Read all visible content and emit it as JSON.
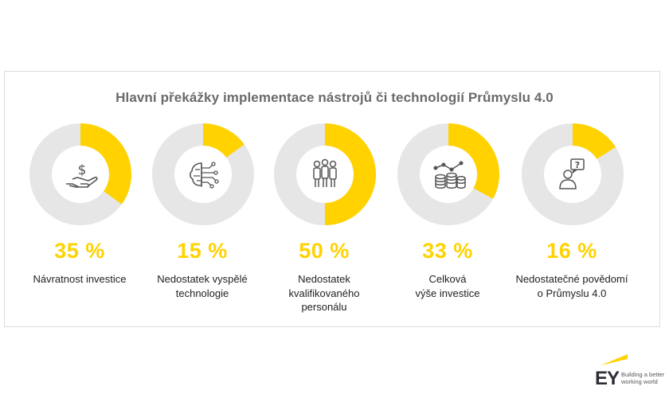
{
  "title": "Hlavní překážky implementace nástrojů či technologií Průmyslu 4.0",
  "colors": {
    "accent": "#ffd200",
    "track": "#e6e6e6",
    "text": "#222222",
    "title": "#6a6a6a"
  },
  "chart_data": {
    "type": "donut",
    "title": "Hlavní překážky implementace nástrojů či technologií Průmyslu 4.0",
    "unit": "%",
    "items": [
      {
        "value": 35,
        "value_label": "35 %",
        "label": "Návratnost investice",
        "icon": "hand-dollar-icon"
      },
      {
        "value": 15,
        "value_label": "15 %",
        "label": "Nedostatek vyspělé\ntechnologie",
        "icon": "brain-circuit-icon"
      },
      {
        "value": 50,
        "value_label": "50 %",
        "label": "Nedostatek\nkvalifikovaného\npersonálu",
        "icon": "people-group-icon"
      },
      {
        "value": 33,
        "value_label": "33 %",
        "label": "Celková\nvýše investice",
        "icon": "coins-chart-icon"
      },
      {
        "value": 16,
        "value_label": "16 %",
        "label": "Nedostatečné povědomí\no Průmyslu 4.0",
        "icon": "person-question-icon"
      }
    ]
  },
  "logo": {
    "brand": "EY",
    "tagline": "Building a better\nworking world"
  }
}
